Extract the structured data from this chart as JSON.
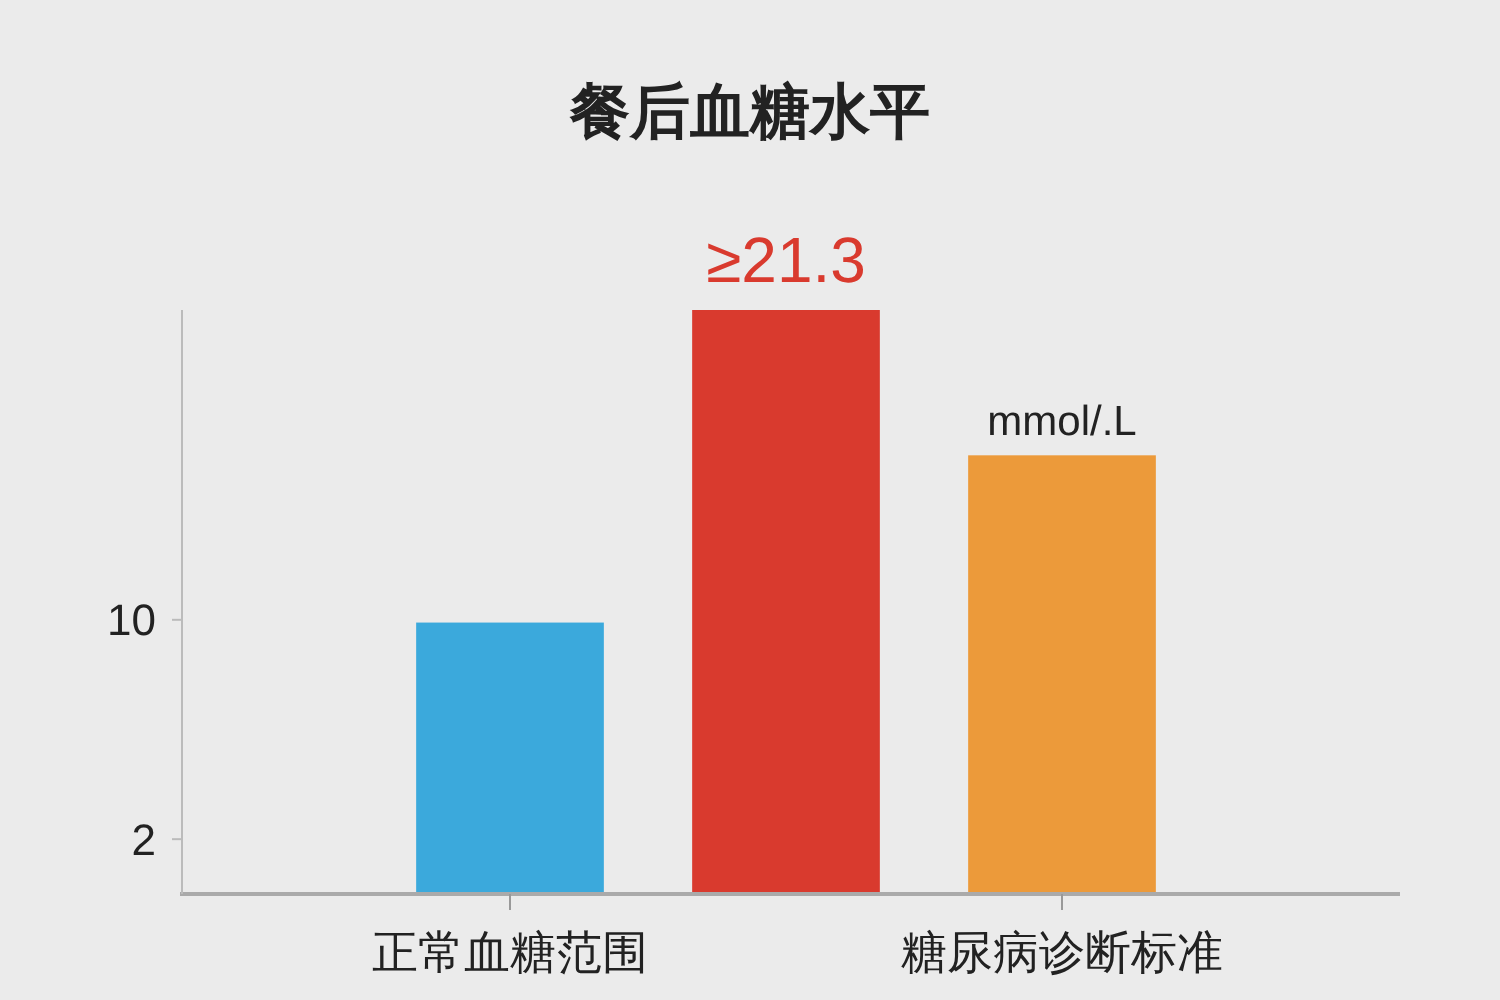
{
  "chart_data": {
    "type": "bar",
    "title": "餐后血糖水平",
    "categories": [
      "正常血糖范围",
      null,
      "糖尿病诊断标准"
    ],
    "values": [
      9.9,
      21.3,
      16
    ],
    "colors": [
      "#3ba9dc",
      "#d93a2e",
      "#ec9a3a"
    ],
    "value_labels": [
      null,
      "≥21.3",
      null
    ],
    "ylim": [
      0,
      21.3
    ],
    "yticks": [
      2,
      10
    ],
    "annotations": [
      {
        "text": "mmol/.L",
        "x": "糖尿病诊断标准",
        "y": 16
      }
    ]
  }
}
